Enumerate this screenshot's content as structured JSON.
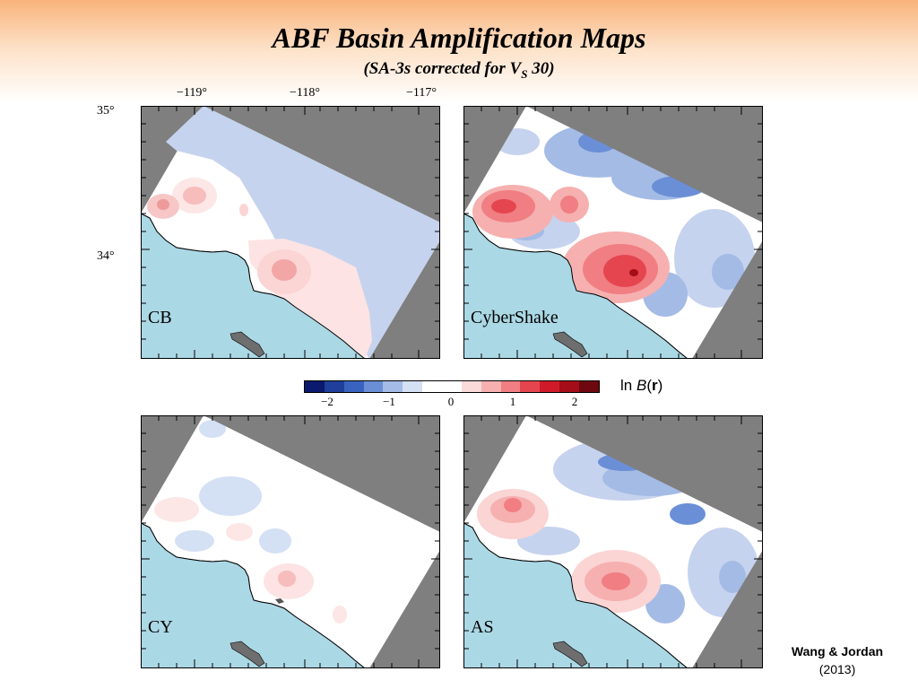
{
  "slide": {
    "title": "ABF Basin Amplification Maps",
    "subtitle_prefix": "(SA-3s corrected for V",
    "subtitle_sub": "S",
    "subtitle_suffix": " 30)"
  },
  "axes": {
    "longitude_labels": [
      "−119°",
      "−118°",
      "−117°"
    ],
    "latitude_labels": [
      "35°",
      "34°"
    ]
  },
  "panels": [
    {
      "label": "CB"
    },
    {
      "label": "CyberShake"
    },
    {
      "label": "CY"
    },
    {
      "label": "AS"
    }
  ],
  "colorbar": {
    "label_prefix": "ln ",
    "label_var": "B",
    "label_arg": "r",
    "ticks": [
      "−2",
      "−1",
      "0",
      "1",
      "2"
    ],
    "colors": [
      "#0b1a6e",
      "#1f3f9a",
      "#3a63c0",
      "#6b8fd6",
      "#a4bbe6",
      "#d4e0f4",
      "#ffffff",
      "#ffffff",
      "#fbdada",
      "#f6b0b0",
      "#f07e82",
      "#e5454f",
      "#d01a2a",
      "#a50d18",
      "#6e0710"
    ]
  },
  "colors": {
    "ocean": "#abd8e5",
    "outside": "#7f7f7f",
    "island": "#6e6e6e"
  },
  "credit": {
    "author": "Wang & Jordan",
    "year": "2013"
  }
}
